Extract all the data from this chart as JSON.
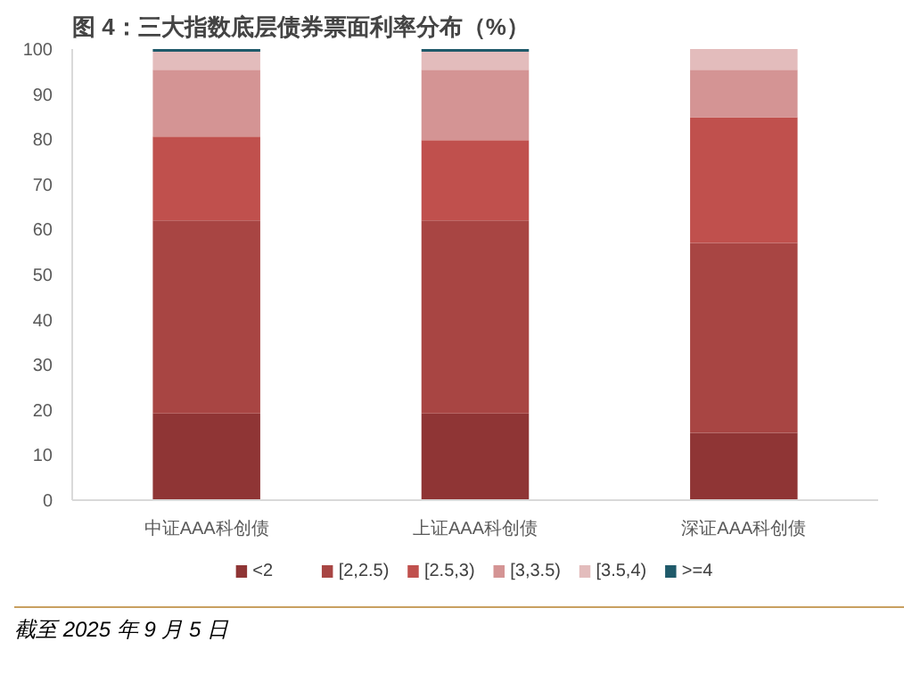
{
  "chart_data": {
    "type": "bar",
    "title": "图 4：三大指数底层债券票面利率分布（%）",
    "categories": [
      "中证AAA科创债",
      "上证AAA科创债",
      "深证AAA科创债"
    ],
    "stacked": true,
    "series": [
      {
        "name": "<2",
        "color": "#8f3535",
        "values": [
          19.2,
          19.2,
          14.9
        ]
      },
      {
        "name": "[2,2.5)",
        "color": "#a84543",
        "values": [
          42.8,
          42.8,
          42.1
        ]
      },
      {
        "name": "[2.5,3)",
        "color": "#c0504d",
        "values": [
          18.6,
          17.8,
          27.9
        ]
      },
      {
        "name": "[3,3.5)",
        "color": "#d49494",
        "values": [
          14.8,
          15.6,
          10.5
        ]
      },
      {
        "name": "[3.5,4)",
        "color": "#e3bcbc",
        "values": [
          4.0,
          4.0,
          4.6
        ]
      },
      {
        "name": ">=4",
        "color": "#1f5a6a",
        "values": [
          0.6,
          0.6,
          0
        ]
      }
    ],
    "ylim": [
      0,
      100
    ],
    "yticks": [
      0,
      10,
      20,
      30,
      40,
      50,
      60,
      70,
      80,
      90,
      100
    ],
    "grid": false,
    "legend": "bottom",
    "annotations": [
      "截至 2025 年 9 月 5 日"
    ]
  }
}
